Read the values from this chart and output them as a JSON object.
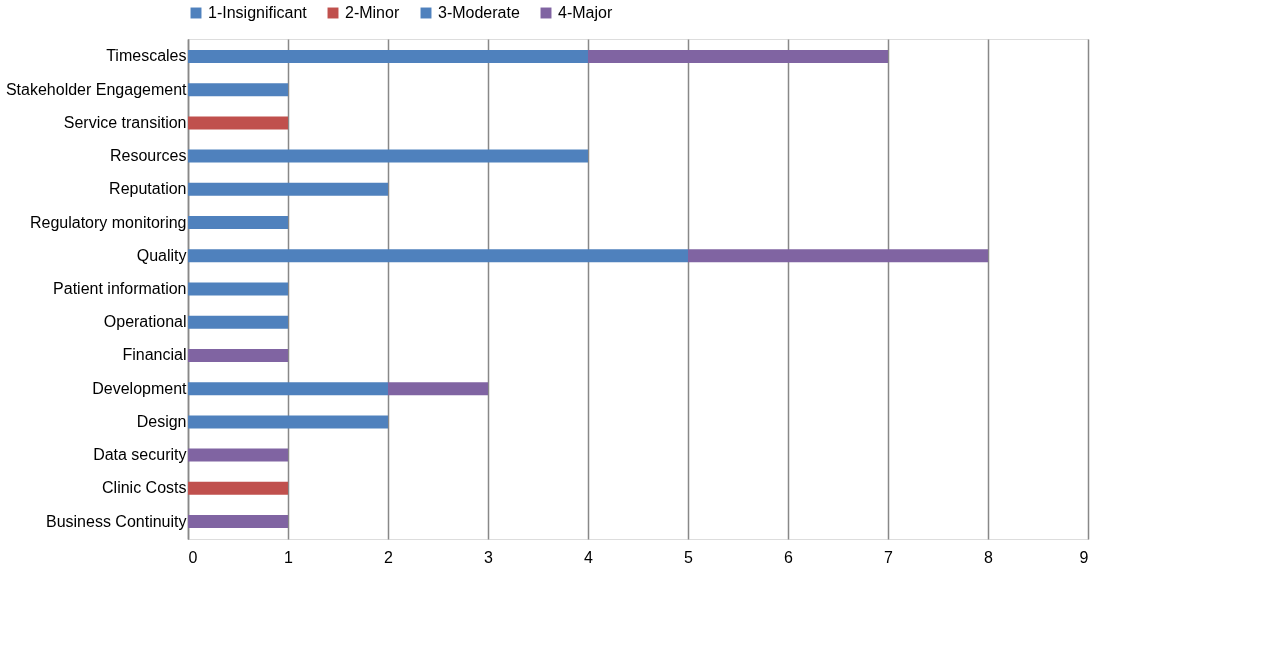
{
  "chart_data": {
    "type": "bar",
    "orientation": "horizontal",
    "stacked": true,
    "categories": [
      "Timescales",
      "Stakeholder Engagement",
      "Service transition",
      "Resources",
      "Reputation",
      "Regulatory monitoring",
      "Quality",
      "Patient information",
      "Operational",
      "Financial",
      "Development",
      "Design",
      "Data security",
      "Clinic Costs",
      "Business Continuity"
    ],
    "series": [
      {
        "name": "1-Insignificant",
        "color": "#4f81bd",
        "values": [
          null,
          null,
          null,
          null,
          null,
          null,
          null,
          null,
          null,
          null,
          null,
          null,
          null,
          null,
          null
        ]
      },
      {
        "name": "2-Minor",
        "color": "#c0504d",
        "values": [
          null,
          null,
          1,
          null,
          null,
          null,
          null,
          null,
          null,
          null,
          null,
          null,
          null,
          1,
          null
        ]
      },
      {
        "name": "3-Moderate",
        "color": "#4f81bd",
        "values": [
          4,
          1,
          null,
          4,
          2,
          1,
          5,
          1,
          1,
          null,
          2,
          2,
          null,
          null,
          null
        ]
      },
      {
        "name": "4-Major",
        "color": "#8064a2",
        "values": [
          3,
          null,
          null,
          null,
          null,
          null,
          3,
          null,
          null,
          1,
          1,
          null,
          1,
          null,
          1
        ]
      }
    ],
    "xlim": [
      0,
      9
    ],
    "xticks": [
      0,
      1,
      2,
      3,
      4,
      5,
      6,
      7,
      8,
      9
    ],
    "grid": "x",
    "legend": "top"
  }
}
